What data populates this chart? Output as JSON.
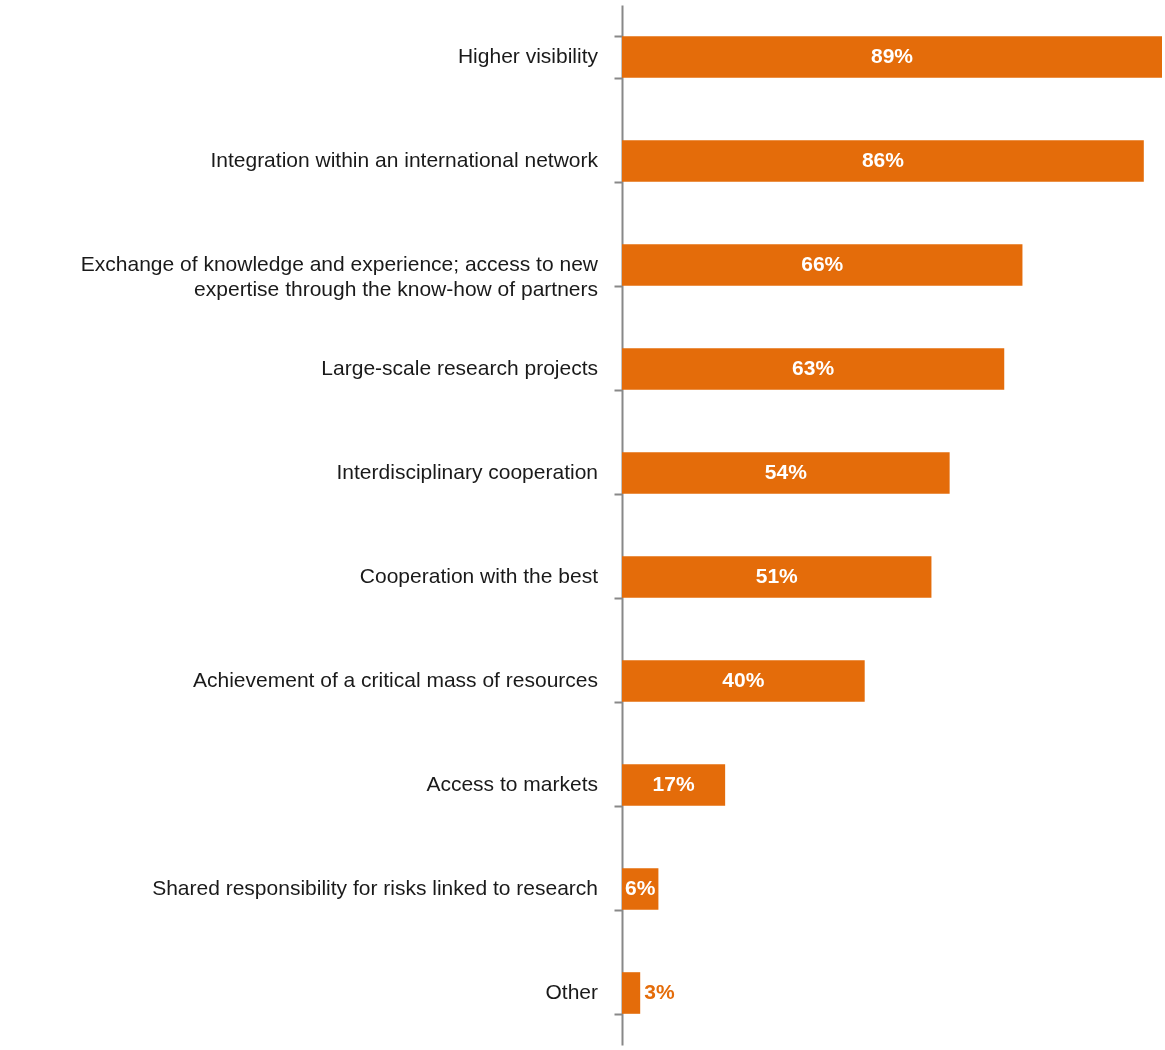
{
  "chart_data": {
    "type": "bar",
    "orientation": "horizontal",
    "color": "#e46c0a",
    "categories": [
      "Higher visibility",
      "Integration within an international network",
      "Exchange of knowledge and experience; access to new expertise through the know-how of partners",
      "Large-scale research projects",
      "Interdisciplinary cooperation",
      "Cooperation with the best",
      "Achievement of a critical mass of resources",
      "Access to markets",
      "Shared responsibility for risks linked to research",
      "Other"
    ],
    "values": [
      89,
      86,
      66,
      63,
      54,
      51,
      40,
      17,
      6,
      3
    ],
    "value_labels": [
      "89%",
      "86%",
      "66%",
      "63%",
      "54%",
      "51%",
      "40%",
      "17%",
      "6%",
      "3%"
    ]
  }
}
